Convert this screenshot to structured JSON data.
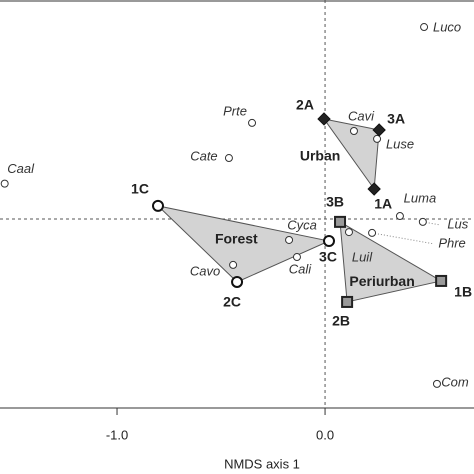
{
  "chart_data": {
    "type": "scatter",
    "x_label": "NMDS axis 1",
    "xlim": [
      -1.5625,
      0.716
    ],
    "ylim": [
      -0.909,
      1.053
    ],
    "xticks": [
      {
        "value": -1.0,
        "label": "-1.0"
      },
      {
        "value": 0.0,
        "label": "0.0"
      }
    ],
    "species": {
      "labels": [
        "Luco",
        "Prte",
        "Cate",
        "Caal",
        "Cavi",
        "Luse",
        "Luma",
        "Lus",
        "Luil",
        "Phre",
        "Cyca",
        "Cali",
        "Cavo",
        "Com"
      ],
      "x": [
        0.476,
        -0.351,
        -0.462,
        -1.54,
        0.139,
        0.25,
        0.36,
        0.47,
        0.115,
        0.226,
        -0.173,
        -0.135,
        -0.442,
        0.538
      ],
      "y": [
        0.923,
        0.462,
        0.293,
        0.17,
        0.423,
        0.385,
        0.014,
        -0.014,
        -0.063,
        -0.067,
        -0.101,
        -0.183,
        -0.221,
        -0.793
      ]
    },
    "groups": [
      {
        "name": "Urban",
        "marker": "diamond",
        "color": "#222222",
        "labels": [
          "2A",
          "3A",
          "1A"
        ],
        "x": [
          -0.005,
          0.26,
          0.236
        ],
        "y": [
          0.481,
          0.428,
          0.144
        ]
      },
      {
        "name": "Forest",
        "marker": "circle",
        "color": "#ffffff",
        "labels": [
          "1C",
          "2C",
          "3C"
        ],
        "x": [
          -0.803,
          -0.423,
          0.019
        ],
        "y": [
          0.063,
          -0.303,
          -0.106
        ]
      },
      {
        "name": "Periurban",
        "marker": "square",
        "color": "#9a9a9a",
        "labels": [
          "3B",
          "2B",
          "1B"
        ],
        "x": [
          0.072,
          0.106,
          0.558
        ],
        "y": [
          -0.014,
          -0.399,
          -0.298
        ]
      }
    ]
  }
}
